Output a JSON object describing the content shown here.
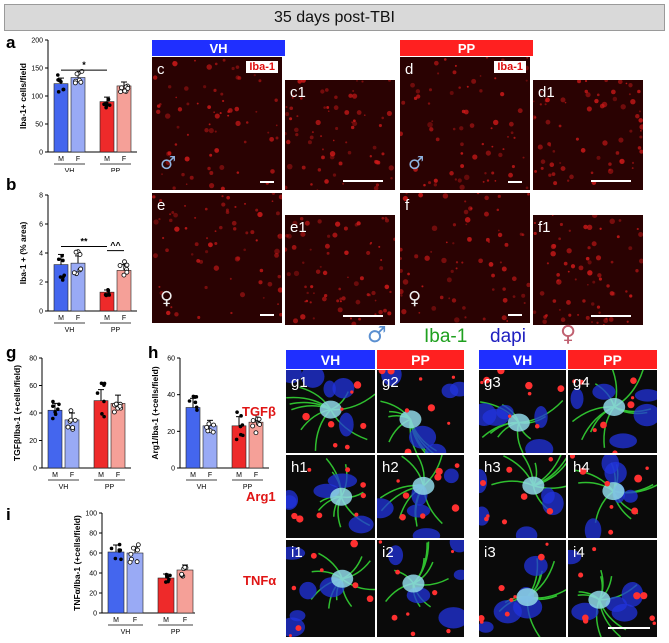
{
  "title": "35 days post-TBI",
  "panels": {
    "a": "a",
    "b": "b",
    "g": "g",
    "h": "h",
    "i": "i",
    "c": "c",
    "c1": "c1",
    "d": "d",
    "d1": "d1",
    "e": "e",
    "e1": "e1",
    "f": "f",
    "f1": "f1",
    "g1": "g1",
    "g2": "g2",
    "g3": "g3",
    "g4": "g4",
    "h1": "h1",
    "h2": "h2",
    "h3": "h3",
    "h4": "h4",
    "i1": "i1",
    "i2": "i2",
    "i3": "i3",
    "i4": "i4"
  },
  "groups": {
    "vh": "VH",
    "pp": "PP"
  },
  "stain": "Iba-1",
  "sex": {
    "male": "♂",
    "female": "♀"
  },
  "legend": {
    "iba": "Iba-1",
    "dapi": "dapi"
  },
  "rows": {
    "tgf": "TGFβ",
    "arg": "Arg1",
    "tnf": "TNFα"
  },
  "colors": {
    "vh_bar": "#1f2fff",
    "pp_bar": "#ff2020",
    "m_vh": "#4466ee",
    "f_vh": "#99aaf5",
    "m_pp": "#ee2a2a",
    "f_pp": "#f5a098",
    "iba_green": "#22aa22",
    "dapi_blue": "#2222cc"
  },
  "chart_data": [
    {
      "id": "a",
      "type": "bar",
      "ylabel": "Iba-1+ cells/field",
      "ylim": [
        0,
        200
      ],
      "yticks": [
        0,
        50,
        100,
        150,
        200
      ],
      "categories": [
        "M",
        "F",
        "M",
        "F"
      ],
      "groups": [
        "VH",
        "PP"
      ],
      "values": [
        122,
        133,
        90,
        118
      ],
      "errors": [
        10,
        8,
        8,
        7
      ],
      "annotations": [
        {
          "text": "*",
          "between": [
            0,
            2
          ]
        }
      ]
    },
    {
      "id": "b",
      "type": "bar",
      "ylabel": "Iba-1 + (% area)",
      "ylim": [
        0,
        8
      ],
      "yticks": [
        0,
        2,
        4,
        6,
        8
      ],
      "categories": [
        "M",
        "F",
        "M",
        "F"
      ],
      "groups": [
        "VH",
        "PP"
      ],
      "values": [
        3.2,
        3.3,
        1.3,
        2.8
      ],
      "errors": [
        0.7,
        0.5,
        0.15,
        0.4
      ],
      "annotations": [
        {
          "text": "**",
          "between": [
            0,
            2
          ]
        },
        {
          "text": "^^",
          "between": [
            2,
            3
          ]
        }
      ]
    },
    {
      "id": "g",
      "type": "bar",
      "ylabel": "TGFβ/Iba-1 (+cells/field)",
      "ylim": [
        0,
        80
      ],
      "yticks": [
        0,
        20,
        40,
        60,
        80
      ],
      "categories": [
        "M",
        "F",
        "M",
        "F"
      ],
      "groups": [
        "VH",
        "PP"
      ],
      "values": [
        42,
        35,
        49,
        47
      ],
      "errors": [
        5,
        5,
        8,
        6
      ]
    },
    {
      "id": "h",
      "type": "bar",
      "ylabel": "Arg1/Iba-1 (+cells/field)",
      "ylim": [
        0,
        60
      ],
      "yticks": [
        0,
        20,
        40,
        60
      ],
      "categories": [
        "M",
        "F",
        "M",
        "F"
      ],
      "groups": [
        "VH",
        "PP"
      ],
      "values": [
        33,
        23,
        23,
        25
      ],
      "errors": [
        5,
        3,
        5,
        4
      ]
    },
    {
      "id": "i",
      "type": "bar",
      "ylabel": "TNFα/Iba-1 (+cells/field)",
      "ylim": [
        0,
        100
      ],
      "yticks": [
        0,
        20,
        40,
        60,
        80,
        100
      ],
      "categories": [
        "M",
        "F",
        "M",
        "F"
      ],
      "groups": [
        "VH",
        "PP"
      ],
      "values": [
        61,
        60,
        35,
        43
      ],
      "errors": [
        7,
        6,
        4,
        5
      ]
    }
  ]
}
